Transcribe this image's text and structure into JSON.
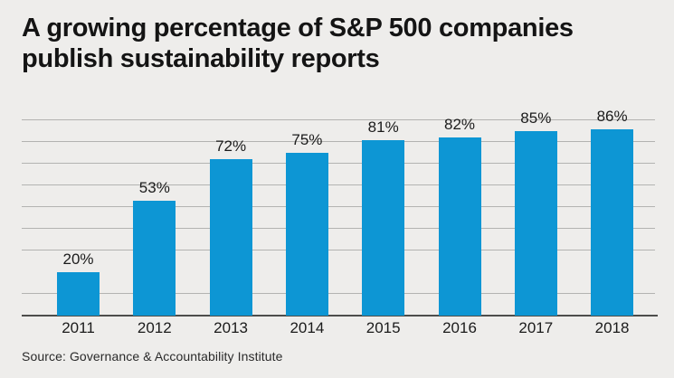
{
  "header": {
    "title_lines": [
      "A growing percentage of S&P 500 companies",
      "publish sustainability reports"
    ]
  },
  "footer": {
    "source": "Source: Governance & Accountability Institute"
  },
  "colors": {
    "background": "#eeedeb",
    "bar": "#0d96d4",
    "gridline": "#b3b3b1",
    "axis": "#4d4d4b",
    "text": "#161616"
  },
  "chart_data": {
    "type": "bar",
    "title": "A growing percentage of S&P 500 companies publish sustainability reports",
    "categories": [
      "2011",
      "2012",
      "2013",
      "2014",
      "2015",
      "2016",
      "2017",
      "2018"
    ],
    "values": [
      20,
      53,
      72,
      75,
      81,
      82,
      85,
      86
    ],
    "value_labels": [
      "20%",
      "53%",
      "72%",
      "75%",
      "81%",
      "82%",
      "85%",
      "86%"
    ],
    "xlabel": "",
    "ylabel": "",
    "ylim": [
      0,
      100
    ],
    "grid": true,
    "gridline_percents": [
      10,
      30,
      40,
      50,
      60,
      70,
      80,
      90
    ],
    "legend": false,
    "value_label_position": "above-bar"
  }
}
